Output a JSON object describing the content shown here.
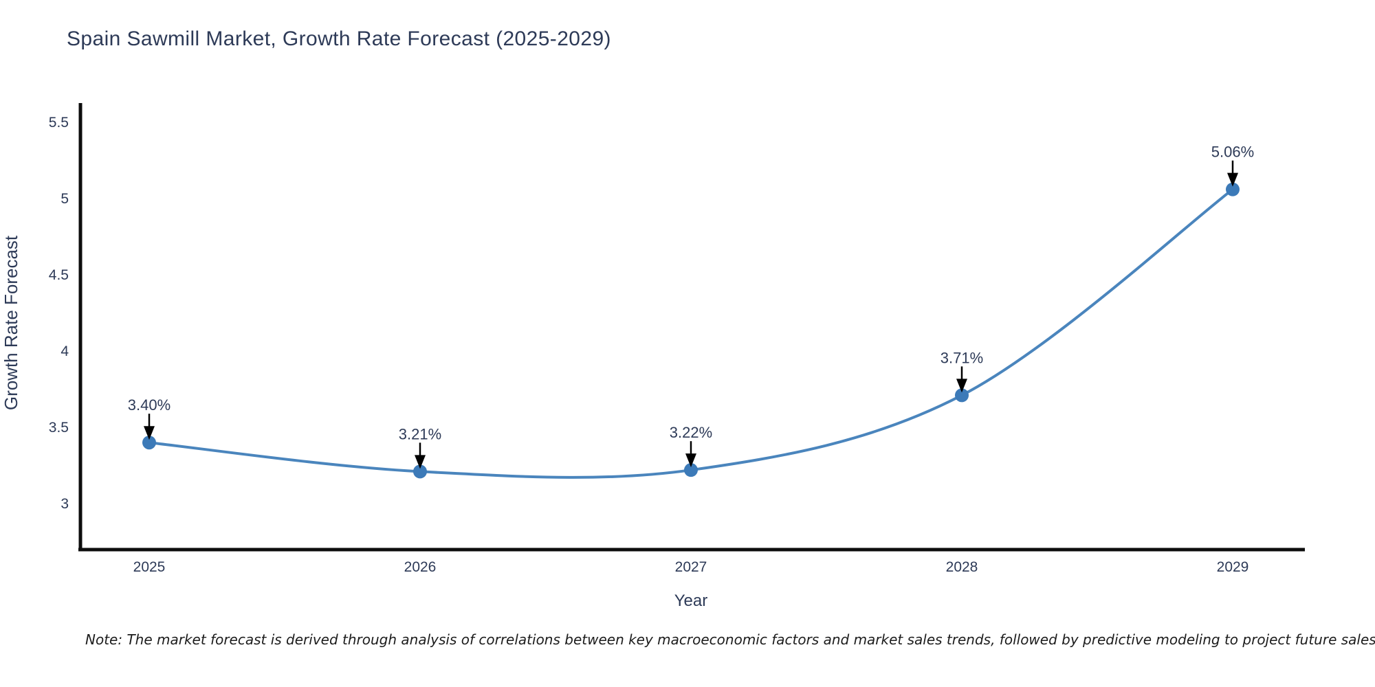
{
  "chart_data": {
    "type": "line",
    "title": "Spain Sawmill Market, Growth Rate Forecast (2025-2029)",
    "xlabel": "Year",
    "ylabel": "Growth Rate Forecast",
    "categories": [
      "2025",
      "2026",
      "2027",
      "2028",
      "2029"
    ],
    "values": [
      3.4,
      3.21,
      3.22,
      3.71,
      5.06
    ],
    "point_labels": [
      "3.40%",
      "3.21%",
      "3.22%",
      "3.71%",
      "5.06%"
    ],
    "yticks": [
      3,
      3.5,
      4,
      4.5,
      5,
      5.5
    ],
    "ytick_labels": [
      "3",
      "3.5",
      "4",
      "4.5",
      "5",
      "5.5"
    ],
    "ylim": [
      2.7,
      5.72
    ],
    "grid": false,
    "legend": "none",
    "line_shape": "spline",
    "colors": {
      "line": "#4a85bd",
      "marker": "#3c7ab8",
      "axis": "#0d0d0d",
      "text": "#2d3a57",
      "annotation_arrow": "#000000",
      "background": "#ffffff"
    }
  },
  "note": "Note: The market forecast is derived through analysis of correlations between key macroeconomic factors and market sales trends, followed by predictive modeling to project future sales"
}
